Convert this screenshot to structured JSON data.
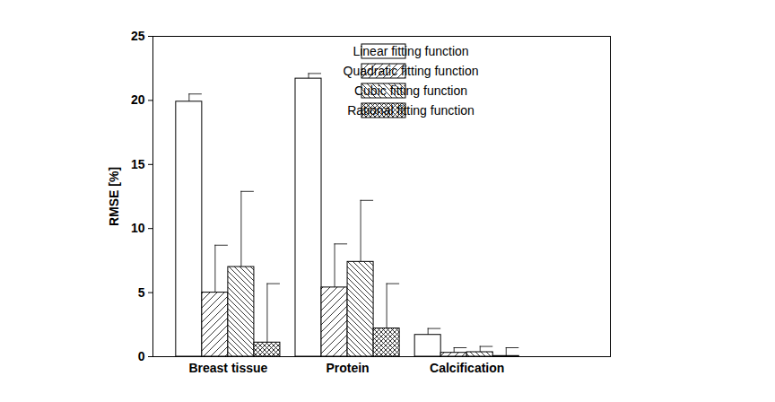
{
  "chart_data": {
    "type": "bar",
    "ylabel": "RMSE [%]",
    "categories": [
      "Breast tissue",
      "Protein",
      "Calcification"
    ],
    "series": [
      {
        "name": "Linear fitting function",
        "color": "#000000",
        "values": [
          19.9,
          21.7,
          1.7
        ],
        "errors": [
          0.6,
          0.4,
          0.5
        ]
      },
      {
        "name": "Quadratic fitting function",
        "color": "#000000",
        "values": [
          5.0,
          5.4,
          0.3
        ],
        "errors": [
          3.7,
          3.4,
          0.4
        ]
      },
      {
        "name": "Cubic fitting function",
        "color": "#000000",
        "values": [
          7.0,
          7.4,
          0.35
        ],
        "errors": [
          5.9,
          4.8,
          0.45
        ]
      },
      {
        "name": "Rational fitting function",
        "color": "#000000",
        "values": [
          1.1,
          2.2,
          0.05
        ],
        "errors": [
          4.6,
          3.5,
          0.65
        ]
      }
    ],
    "ylim": [
      0,
      25
    ],
    "yticks": [
      0,
      5,
      10,
      15,
      20,
      25
    ],
    "legend": "top-right",
    "grid": false
  }
}
